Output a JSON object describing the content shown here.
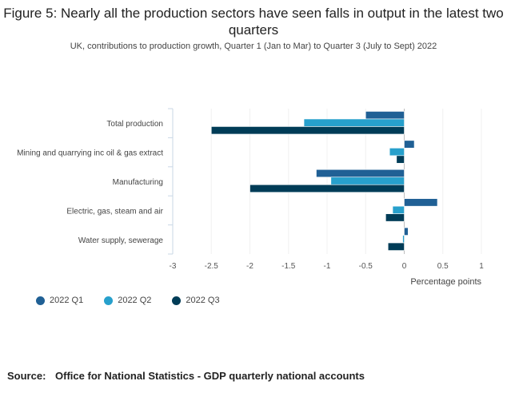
{
  "header": {
    "title": "Figure 5: Nearly all the production sectors have seen falls in output in the latest two quarters",
    "subtitle": "UK, contributions to production growth, Quarter 1 (Jan to Mar) to Quarter 3 (July to Sept) 2022"
  },
  "chart_data": {
    "type": "bar",
    "orientation": "horizontal",
    "categories": [
      "Total production",
      "Mining and quarrying inc oil & gas extract",
      "Manufacturing",
      "Electric, gas, steam and air",
      "Water supply, sewerage"
    ],
    "series": [
      {
        "name": "2022 Q1",
        "color": "#206095",
        "values": [
          -0.5,
          0.13,
          -1.14,
          0.43,
          0.05
        ]
      },
      {
        "name": "2022 Q2",
        "color": "#27A0CC",
        "values": [
          -1.3,
          -0.19,
          -0.95,
          -0.15,
          -0.02
        ]
      },
      {
        "name": "2022 Q3",
        "color": "#003C57",
        "values": [
          -2.5,
          -0.1,
          -2.0,
          -0.24,
          -0.21
        ]
      }
    ],
    "xlim": [
      -3,
      1
    ],
    "xticks": [
      -3,
      -2.5,
      -2,
      -1.5,
      -1,
      -0.5,
      0,
      0.5,
      1
    ],
    "xtick_labels": [
      "-3",
      "-2.5",
      "-2",
      "-1.5",
      "-1",
      "-0.5",
      "0",
      "0.5",
      "1"
    ],
    "xlabel": "Percentage points",
    "ylabel": "",
    "legend_position": "bottom-left"
  },
  "legend": {
    "items": [
      {
        "label": "2022 Q1",
        "color": "#206095"
      },
      {
        "label": "2022 Q2",
        "color": "#27A0CC"
      },
      {
        "label": "2022 Q3",
        "color": "#003C57"
      }
    ]
  },
  "footer": {
    "source_label": "Source:",
    "source_text": "Office for National Statistics - GDP quarterly national accounts"
  }
}
